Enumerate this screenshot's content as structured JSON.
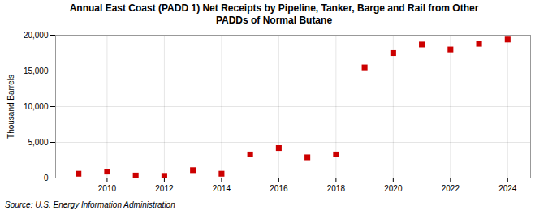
{
  "chart_data": {
    "type": "scatter",
    "title": "Annual East Coast (PADD 1) Net Receipts by Pipeline, Tanker, Barge and Rail from Other",
    "subtitle": "PADDs of Normal Butane",
    "ylabel": "Thousand Barrels",
    "source": "Source: U.S. Energy Information Administration",
    "x": [
      2009,
      2010,
      2011,
      2012,
      2013,
      2014,
      2015,
      2016,
      2017,
      2018,
      2019,
      2020,
      2021,
      2022,
      2023,
      2024
    ],
    "values": [
      600,
      900,
      350,
      300,
      1100,
      600,
      3300,
      4200,
      2900,
      3300,
      15500,
      17500,
      18700,
      18000,
      18800,
      19400
    ],
    "color": "#cc0000",
    "marker": "square",
    "xlim": [
      2008.2,
      2024.8
    ],
    "xticks": [
      2010,
      2012,
      2014,
      2016,
      2018,
      2020,
      2022,
      2024
    ],
    "ylim": [
      0,
      20000
    ],
    "yticks": [
      0,
      {
        "value": 5000,
        "label": "5,000"
      },
      {
        "value": 10000,
        "label": "10,000"
      },
      {
        "value": 15000,
        "label": "15,000"
      },
      {
        "value": 20000,
        "label": "20,000"
      }
    ],
    "grid": true
  }
}
